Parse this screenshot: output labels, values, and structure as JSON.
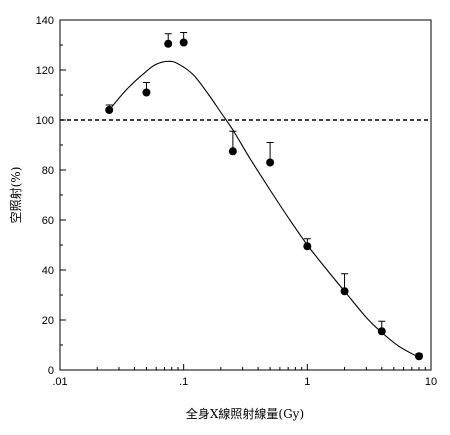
{
  "chart_data": {
    "type": "scatter",
    "title": "",
    "xlabel": "全身X線照射線量(Gy)",
    "ylabel": "空照射(%)",
    "x_scale": "log",
    "xlim": [
      0.01,
      10
    ],
    "ylim": [
      0,
      140
    ],
    "x_ticks": [
      {
        "value": 0.01,
        "label": ".01"
      },
      {
        "value": 0.1,
        "label": ".1"
      },
      {
        "value": 1,
        "label": "1"
      },
      {
        "value": 10,
        "label": "10"
      }
    ],
    "y_ticks": [
      0,
      20,
      40,
      60,
      80,
      100,
      120,
      140
    ],
    "reference_line": {
      "y": 100,
      "style": "dashed"
    },
    "points": [
      {
        "x": 0.025,
        "y": 104,
        "err": 2
      },
      {
        "x": 0.05,
        "y": 111,
        "err": 4
      },
      {
        "x": 0.075,
        "y": 130.5,
        "err": 4
      },
      {
        "x": 0.1,
        "y": 131,
        "err": 4
      },
      {
        "x": 0.25,
        "y": 87.5,
        "err": 8
      },
      {
        "x": 0.5,
        "y": 83,
        "err": 8
      },
      {
        "x": 1,
        "y": 49.5,
        "err": 3
      },
      {
        "x": 2,
        "y": 31.5,
        "err": 7
      },
      {
        "x": 4,
        "y": 15.5,
        "err": 4
      },
      {
        "x": 8,
        "y": 5.5,
        "err": 1
      }
    ],
    "fit_curve": [
      [
        0.025,
        104
      ],
      [
        0.035,
        112.5
      ],
      [
        0.05,
        119.5
      ],
      [
        0.06,
        122.3
      ],
      [
        0.075,
        123.5
      ],
      [
        0.09,
        122.5
      ],
      [
        0.12,
        118
      ],
      [
        0.16,
        110
      ],
      [
        0.2,
        103
      ],
      [
        0.25,
        96
      ],
      [
        0.35,
        84
      ],
      [
        0.5,
        72
      ],
      [
        0.7,
        61
      ],
      [
        1,
        50
      ],
      [
        1.5,
        39
      ],
      [
        2,
        31.5
      ],
      [
        3,
        21
      ],
      [
        4,
        15
      ],
      [
        5.5,
        9.5
      ],
      [
        8,
        5
      ]
    ],
    "grid": false,
    "legend": "none"
  }
}
